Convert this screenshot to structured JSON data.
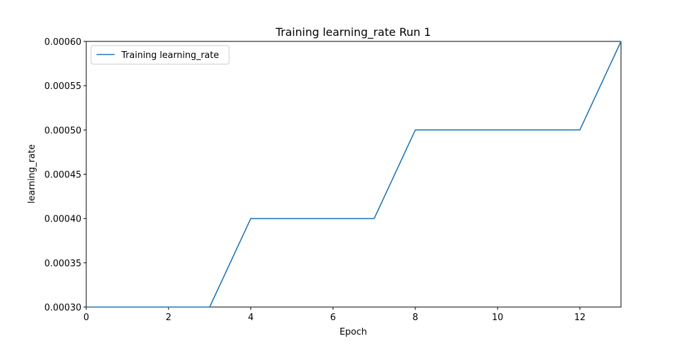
{
  "colors": {
    "series": "#1f77b4",
    "axes": "#000000",
    "legend_border": "#cccccc",
    "background": "#ffffff"
  },
  "chart_data": {
    "type": "line",
    "title": "Training learning_rate Run 1",
    "xlabel": "Epoch",
    "ylabel": "learning_rate",
    "xlim": [
      0,
      13
    ],
    "ylim": [
      0.0003,
      0.0006
    ],
    "xticks": [
      0,
      2,
      4,
      6,
      8,
      10,
      12
    ],
    "xtick_labels": [
      "0",
      "2",
      "4",
      "6",
      "8",
      "10",
      "12"
    ],
    "yticks": [
      0.0003,
      0.00035,
      0.0004,
      0.00045,
      0.0005,
      0.00055,
      0.0006
    ],
    "ytick_labels": [
      "0.00030",
      "0.00035",
      "0.00040",
      "0.00045",
      "0.00050",
      "0.00055",
      "0.00060"
    ],
    "grid": false,
    "legend_position": "top-left",
    "series": [
      {
        "name": "Training learning_rate",
        "x": [
          0,
          1,
          2,
          3,
          4,
          5,
          6,
          7,
          8,
          9,
          10,
          11,
          12,
          13
        ],
        "y": [
          0.0003,
          0.0003,
          0.0003,
          0.0003,
          0.0004,
          0.0004,
          0.0004,
          0.0004,
          0.0005,
          0.0005,
          0.0005,
          0.0005,
          0.0005,
          0.0006
        ]
      }
    ]
  }
}
